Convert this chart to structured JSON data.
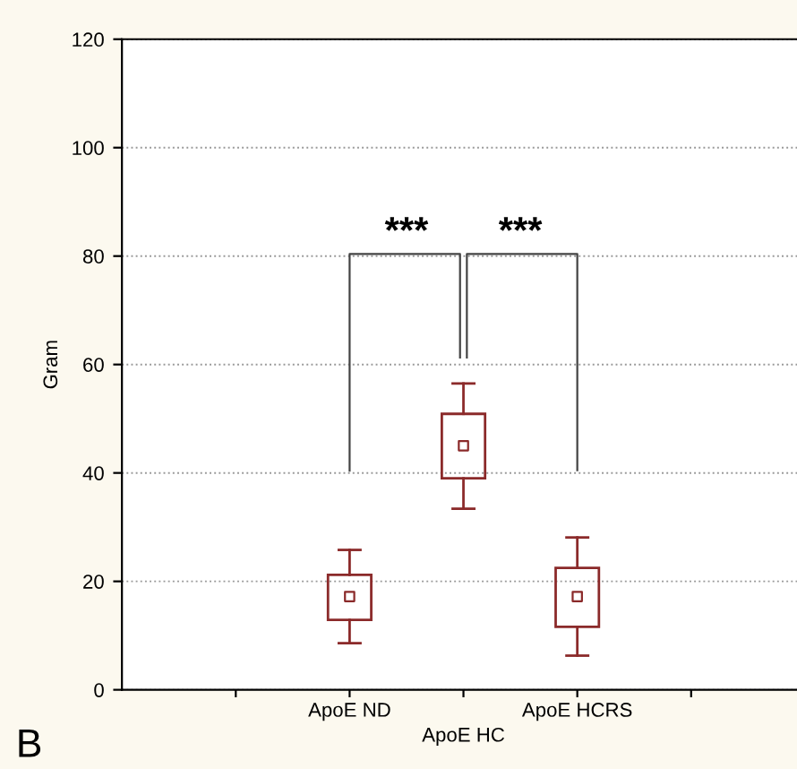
{
  "chart_data": {
    "type": "box",
    "ylabel": "Gram",
    "categories": [
      null,
      "ApoE ND",
      "ApoE HC",
      "ApoE HCRS",
      null
    ],
    "boxes": [
      null,
      {
        "low": 8.6,
        "q1": 12.9,
        "median": 17.2,
        "q3": 21.2,
        "high": 25.8
      },
      {
        "low": 33.4,
        "q1": 39,
        "median": 45,
        "q3": 50.9,
        "high": 56.5
      },
      {
        "low": 6.3,
        "q1": 11.6,
        "median": 17.2,
        "q3": 22.5,
        "high": 28.1
      },
      null
    ],
    "color": "#8b2a2a",
    "ylim": [
      0,
      120
    ],
    "yticks": [
      0,
      20,
      40,
      60,
      80,
      100,
      120
    ],
    "grid": "y",
    "marker": "square",
    "annotations": [
      "***",
      "***",
      "B"
    ]
  }
}
